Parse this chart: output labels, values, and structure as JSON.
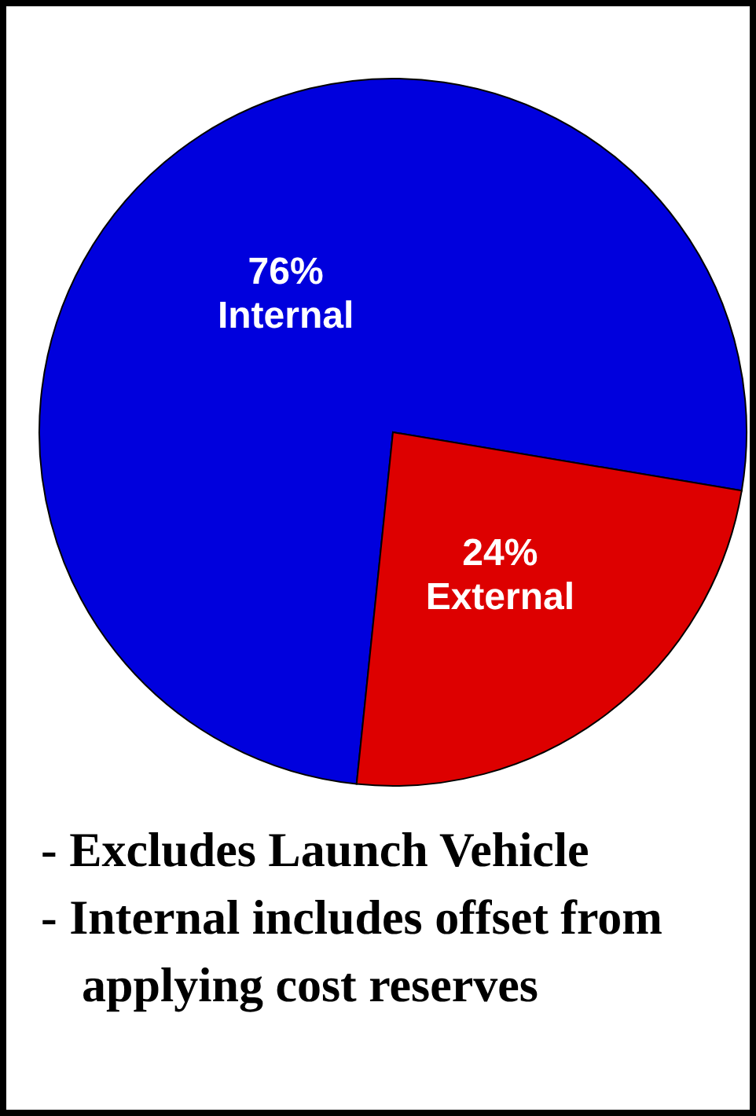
{
  "chart_data": {
    "type": "pie",
    "categories": [
      "Internal",
      "External"
    ],
    "values": [
      76,
      24
    ],
    "value_labels": [
      "76%",
      "24%"
    ],
    "colors": [
      "#0000dd",
      "#dd0000"
    ],
    "annotations": [
      "- Excludes Launch Vehicle",
      "- Internal includes offset from applying cost reserves"
    ]
  }
}
